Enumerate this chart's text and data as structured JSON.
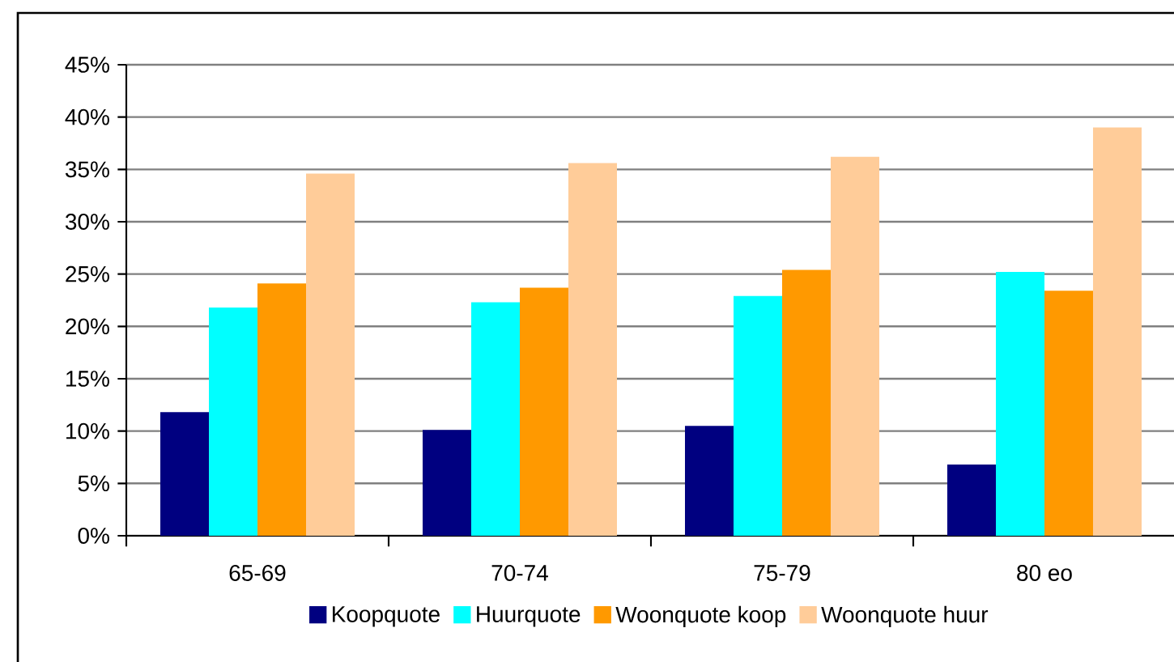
{
  "chart_data": {
    "type": "bar",
    "categories": [
      "65-69",
      "70-74",
      "75-79",
      "80 eo"
    ],
    "series": [
      {
        "name": "Koopquote",
        "color": "#000080",
        "values": [
          11.8,
          10.1,
          10.5,
          6.8
        ]
      },
      {
        "name": "Huurquote",
        "color": "#00ffff",
        "values": [
          21.8,
          22.3,
          22.9,
          25.2
        ]
      },
      {
        "name": "Woonquote koop",
        "color": "#ff9900",
        "values": [
          24.1,
          23.7,
          25.4,
          23.4
        ]
      },
      {
        "name": "Woonquote huur",
        "color": "#ffcc99",
        "values": [
          34.6,
          35.6,
          36.2,
          39.0
        ]
      }
    ],
    "ylim": [
      0,
      45
    ],
    "yticks": [
      {
        "value": 0,
        "label": "0%"
      },
      {
        "value": 5,
        "label": "5%"
      },
      {
        "value": 10,
        "label": "10%"
      },
      {
        "value": 15,
        "label": "15%"
      },
      {
        "value": 20,
        "label": "20%"
      },
      {
        "value": 25,
        "label": "25%"
      },
      {
        "value": 30,
        "label": "30%"
      },
      {
        "value": 35,
        "label": "35%"
      },
      {
        "value": 40,
        "label": "40%"
      },
      {
        "value": 45,
        "label": "45%"
      }
    ],
    "grid": "y",
    "legend": "bottom"
  }
}
